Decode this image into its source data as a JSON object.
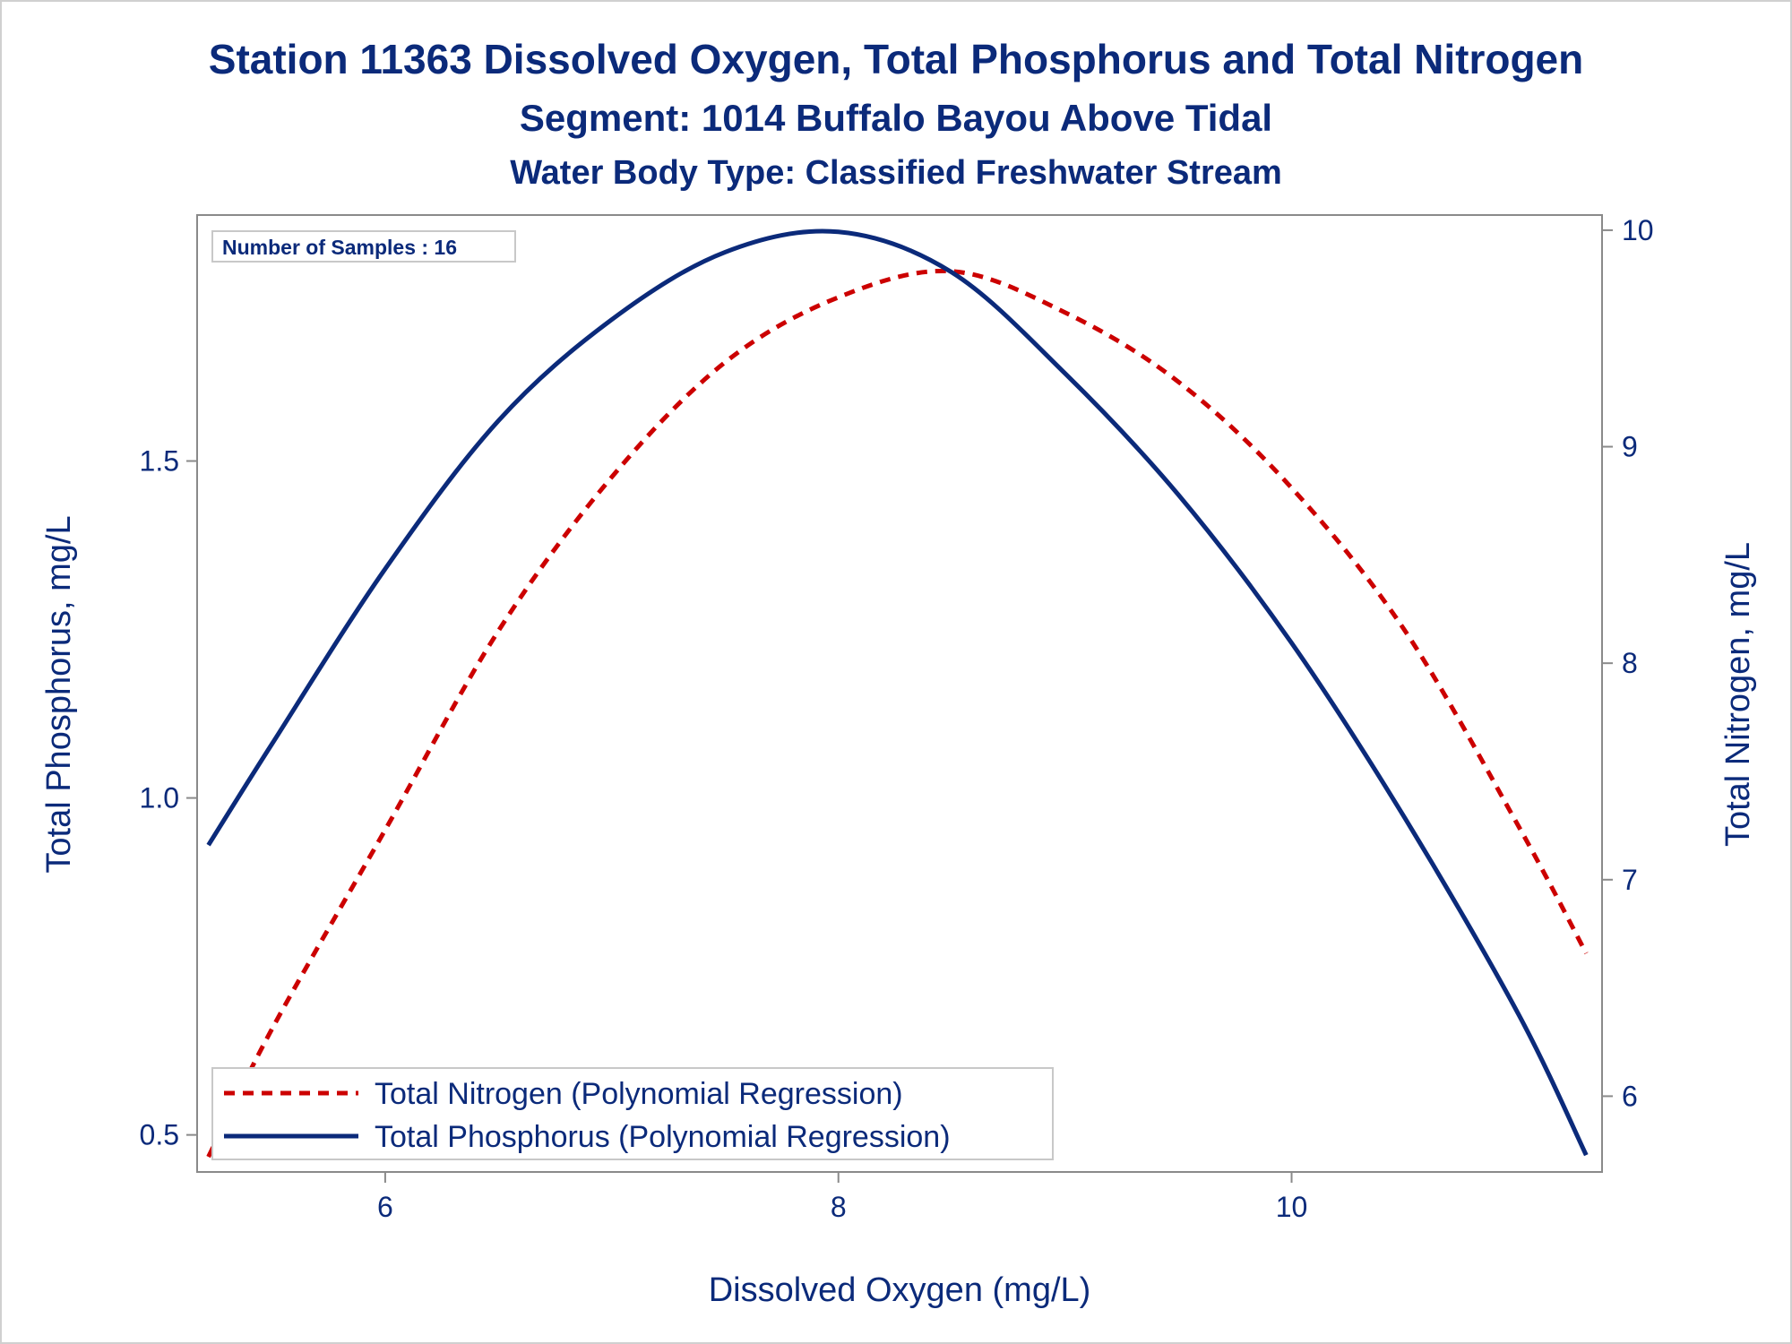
{
  "chart_data": {
    "type": "line",
    "title": "Station 11363  Dissolved Oxygen, Total Phosphorus and Total Nitrogen",
    "subtitle": "Segment: 1014  Buffalo Bayou Above Tidal",
    "subtitle2": "Water Body Type: Classified Freshwater Stream",
    "xlabel": "Dissolved Oxygen (mg/L)",
    "ylabel_left": "Total Phosphorus, mg/L",
    "ylabel_right": "Total Nitrogen, mg/L",
    "xlim": [
      5.17,
      11.37
    ],
    "ylim_left": [
      0.445,
      1.865
    ],
    "ylim_right": [
      5.65,
      10.07
    ],
    "x_ticks": [
      6,
      8,
      10
    ],
    "x_tick_labels": [
      "6",
      "8",
      "10"
    ],
    "y_left_ticks": [
      0.5,
      1.0,
      1.5
    ],
    "y_left_tick_labels": [
      "0.5",
      "1.0",
      "1.5"
    ],
    "y_right_ticks": [
      6,
      7,
      8,
      9,
      10
    ],
    "y_right_tick_labels": [
      "6",
      "7",
      "8",
      "9",
      "10"
    ],
    "annotation": "Number of Samples : 16",
    "legend_placement": "bottom-left",
    "grid": false,
    "series": [
      {
        "name": "Total Nitrogen (Polynomial Regression)",
        "axis": "right",
        "style": "dashed",
        "color": "#cc0000",
        "x": [
          5.22,
          5.5,
          6.0,
          6.5,
          7.0,
          7.5,
          8.0,
          8.5,
          9.0,
          9.5,
          10.0,
          10.5,
          11.0,
          11.3
        ],
        "y": [
          5.72,
          6.31,
          7.23,
          8.15,
          8.86,
          9.39,
          9.69,
          9.81,
          9.62,
          9.3,
          8.81,
          8.15,
          7.25,
          6.66
        ]
      },
      {
        "name": "Total Phosphorus (Polynomial Regression)",
        "axis": "left",
        "style": "solid",
        "color": "#0b2a7a",
        "x": [
          5.22,
          5.5,
          6.0,
          6.5,
          7.0,
          7.5,
          8.0,
          8.5,
          9.0,
          9.5,
          10.0,
          10.5,
          11.0,
          11.3
        ],
        "y": [
          0.93,
          1.08,
          1.34,
          1.56,
          1.71,
          1.81,
          1.84,
          1.78,
          1.63,
          1.45,
          1.23,
          0.97,
          0.68,
          0.47
        ]
      }
    ]
  }
}
